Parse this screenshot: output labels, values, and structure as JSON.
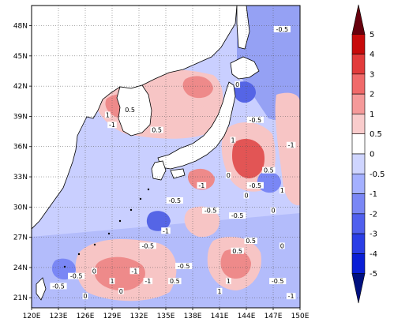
{
  "map": {
    "lat_ticks": [
      "48N",
      "45N",
      "42N",
      "39N",
      "36N",
      "33N",
      "30N",
      "27N",
      "24N",
      "21N"
    ],
    "lon_ticks": [
      "120E",
      "123E",
      "126E",
      "129E",
      "132E",
      "135E",
      "138E",
      "141E",
      "144E",
      "147E",
      "150E"
    ],
    "lat_values": [
      48,
      45,
      42,
      39,
      36,
      33,
      30,
      27,
      24,
      21
    ],
    "lon_values": [
      120,
      123,
      126,
      129,
      132,
      135,
      138,
      141,
      144,
      147,
      150
    ],
    "extent": {
      "lon_min": 120,
      "lon_max": 150,
      "lat_min": 20,
      "lat_max": 50
    },
    "grid": "dotted",
    "contour_labels": [
      "-0.5",
      "0",
      "0.5",
      "1",
      "-1",
      "0.5",
      "-0.5",
      "1",
      "-1",
      "0",
      "-0.5",
      "1",
      "-1",
      "0.5",
      "0",
      "-0.5",
      "-0.5",
      "0",
      "-0.5",
      "-1",
      "0.5",
      "-0.5",
      "0.5",
      "0",
      "-0.5",
      "-1",
      "0",
      "0.5",
      "-1",
      "1",
      "1",
      "-0.5",
      "-0.5",
      "0",
      "0",
      "1",
      "-1",
      "-0.5"
    ]
  },
  "colorbar": {
    "labels": [
      "5",
      "4",
      "3",
      "2",
      "1",
      "0.5",
      "0",
      "-0.5",
      "-1",
      "-2",
      "-3",
      "-4",
      "-5"
    ],
    "colors": [
      "#67000d",
      "#c70b0b",
      "#e23b3b",
      "#f06a6a",
      "#f59a9a",
      "#f9cccc",
      "#ffffff",
      "#cfd5ff",
      "#a4b0ff",
      "#7a87f5",
      "#5060ee",
      "#2a3ee6",
      "#0a1fd6",
      "#001080"
    ]
  },
  "fill_colors": {
    "land": "#ffffff",
    "ocean_neutral": "#f4f6ff",
    "pos_light": "#f7c5c5",
    "pos_mid": "#ee8a8a",
    "pos_strong": "#d93030",
    "neg_light": "#c9cfff",
    "neg_mid": "#95a1f4",
    "neg_strong": "#5565e6",
    "coast": "#000000"
  }
}
